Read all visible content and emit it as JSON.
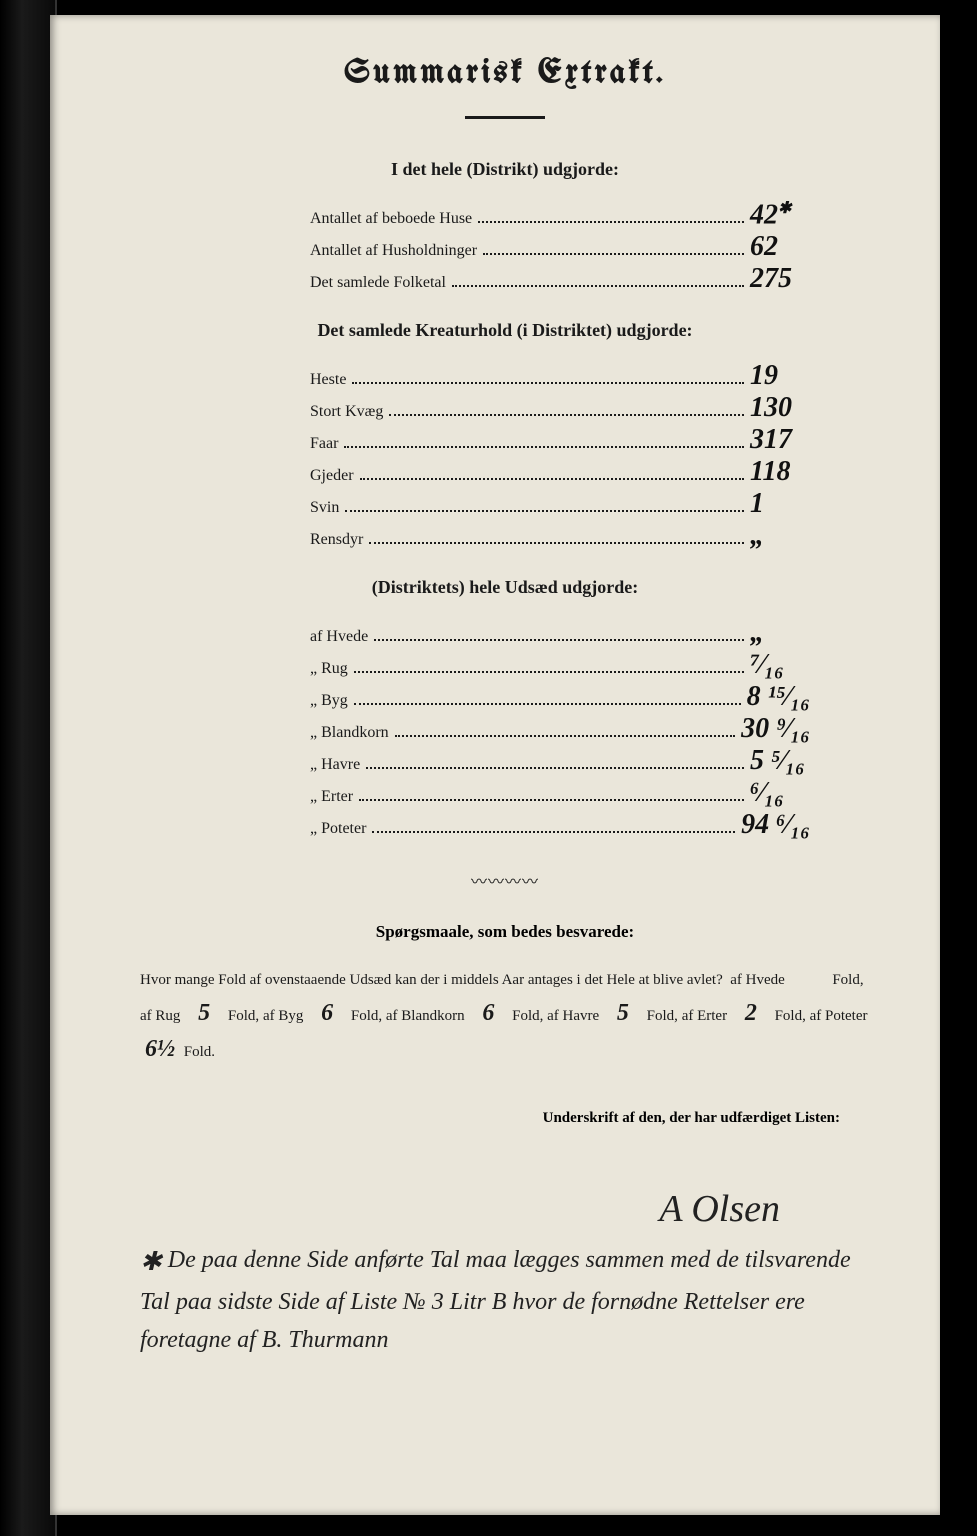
{
  "title": "Summarisk Extrakt.",
  "section1": {
    "heading": "I det hele (Distrikt) udgjorde:",
    "rows": [
      {
        "label": "Antallet af beboede Huse",
        "value": "42",
        "note": "✱"
      },
      {
        "label": "Antallet af Husholdninger",
        "value": "62"
      },
      {
        "label": "Det samlede Folketal",
        "value": "275"
      }
    ]
  },
  "section2": {
    "heading": "Det samlede Kreaturhold (i Distriktet) udgjorde:",
    "rows": [
      {
        "label": "Heste",
        "value": "19"
      },
      {
        "label": "Stort Kvæg",
        "value": "130"
      },
      {
        "label": "Faar",
        "value": "317"
      },
      {
        "label": "Gjeder",
        "value": "118"
      },
      {
        "label": "Svin",
        "value": "1"
      },
      {
        "label": "Rensdyr",
        "value": "„"
      }
    ]
  },
  "section3": {
    "heading": "(Distriktets) hele Udsæd udgjorde:",
    "rows": [
      {
        "label": "af Hvede",
        "value": "„"
      },
      {
        "label": "„ Rug",
        "value": "⁷⁄₁₆"
      },
      {
        "label": "„ Byg",
        "value": "8 ¹⁵⁄₁₆"
      },
      {
        "label": "„ Blandkorn",
        "value": "30 ⁹⁄₁₆"
      },
      {
        "label": "„ Havre",
        "value": "5 ⁵⁄₁₆"
      },
      {
        "label": "„ Erter",
        "value": "⁶⁄₁₆"
      },
      {
        "label": "„ Poteter",
        "value": "94 ⁶⁄₁₆"
      }
    ]
  },
  "questions": {
    "heading": "Spørgsmaale, som bedes besvarede:",
    "intro": "Hvor mange Fold af ovenstaaende Udsæd kan der i middels Aar antages i det Hele at blive avlet?",
    "items": [
      {
        "label": "af Hvede",
        "value": "",
        "unit": "Fold,"
      },
      {
        "label": "af Rug",
        "value": "5",
        "unit": "Fold,"
      },
      {
        "label": "af Byg",
        "value": "6",
        "unit": "Fold,"
      },
      {
        "label": "af Blandkorn",
        "value": "6",
        "unit": "Fold,"
      },
      {
        "label": "af Havre",
        "value": "5",
        "unit": "Fold,"
      },
      {
        "label": "af Erter",
        "value": "2",
        "unit": "Fold,"
      },
      {
        "label": "af Poteter",
        "value": "6½",
        "unit": "Fold."
      }
    ]
  },
  "signature": {
    "label": "Underskrift af den, der har udfærdiget Listen:",
    "name": "A Olsen"
  },
  "footnote": {
    "marker": "✱",
    "text": "De paa denne Side anførte Tal maa lægges sammen med de tilsvarende Tal paa sidste Side af Liste № 3 Litr B hvor de fornødne Rettelser ere foretagne af   B. Thurmann"
  },
  "colors": {
    "paper": "#eae6da",
    "ink": "#1a1a1a",
    "handwriting": "#222222",
    "background": "#000000"
  },
  "typography": {
    "title_fontsize": 34,
    "heading_fontsize": 18,
    "body_fontsize": 16,
    "handwriting_fontsize": 28
  }
}
